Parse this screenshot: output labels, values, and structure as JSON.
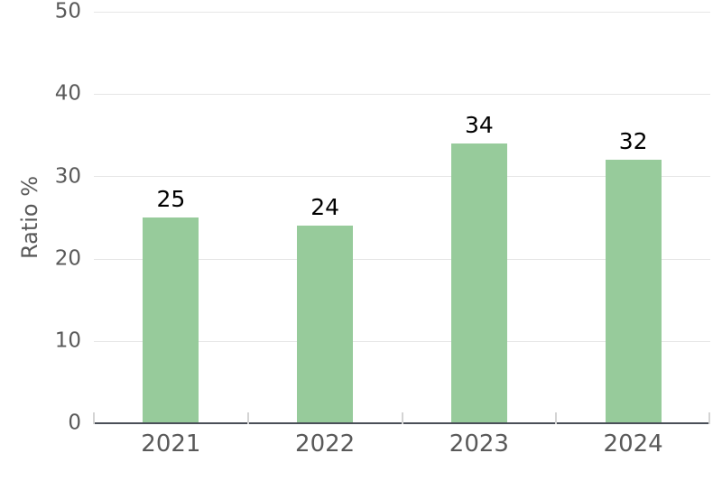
{
  "chart_data": {
    "type": "bar",
    "categories": [
      "2021",
      "2022",
      "2023",
      "2024"
    ],
    "values": [
      25,
      24,
      34,
      32
    ],
    "value_labels": [
      "25",
      "24",
      "34",
      "32"
    ],
    "title": "",
    "xlabel": "",
    "ylabel": "Ratio %",
    "ylim": [
      0,
      50
    ],
    "yticks": [
      0,
      10,
      20,
      30,
      40,
      50
    ],
    "ytick_labels_top_to_bottom": [
      "50",
      "40",
      "30",
      "20",
      "10",
      "0"
    ],
    "grid": "horizontal gridlines on",
    "legend": "none",
    "bar_color": "#97cb9b",
    "gridline_color": "#e6e6e6",
    "axis_line_color": "#4a4f58",
    "tick_mark_color": "#d4d4d4",
    "axis_text_color": "#595959",
    "value_label_color": "#000000"
  }
}
